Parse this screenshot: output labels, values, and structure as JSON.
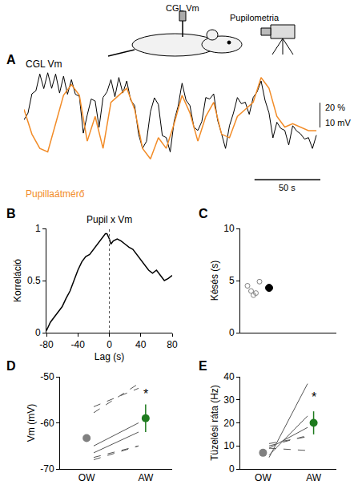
{
  "schematic": {
    "electrode_label": "CGL Vm",
    "camera_label": "Pupilometria"
  },
  "chart_data": [
    {
      "panel": "A",
      "type": "line",
      "tick_labels": false,
      "xlim": [
        0,
        225
      ],
      "ylim": [
        -6,
        40
      ],
      "y2lim": [
        -12,
        80
      ],
      "series": [
        {
          "name": "CGL Vm",
          "color": "#000000",
          "x": [
            0,
            3,
            6,
            9,
            12,
            15,
            18,
            21,
            24,
            27,
            30,
            33,
            36,
            39,
            42,
            45,
            48,
            51,
            54,
            57,
            60,
            63,
            66,
            69,
            72,
            75,
            78,
            81,
            84,
            87,
            90,
            93,
            96,
            99,
            102,
            105,
            108,
            111,
            114,
            117,
            120,
            123,
            126,
            129,
            132,
            135,
            138,
            141,
            144,
            147,
            150,
            153,
            156,
            159,
            162,
            165,
            168,
            171,
            174,
            177,
            180,
            183,
            186,
            189,
            192,
            195,
            198,
            201,
            204,
            207,
            210,
            213,
            216,
            219,
            222
          ],
          "values": [
            20.1,
            22.8,
            30.6,
            31.8,
            38.6,
            32.7,
            39.1,
            32.8,
            38.6,
            30.9,
            37.7,
            30.4,
            36.3,
            30.4,
            29.6,
            14.7,
            22.0,
            28.5,
            27.7,
            17.1,
            29.1,
            31.4,
            36.3,
            29.4,
            37.2,
            30.9,
            35.8,
            28.0,
            25.8,
            14.2,
            8.6,
            11.4,
            23.4,
            29.0,
            26.3,
            13.7,
            12.9,
            7.1,
            19.6,
            25.6,
            34.9,
            28.0,
            25.8,
            17.1,
            15.8,
            19.4,
            29.1,
            28.5,
            30.6,
            19.9,
            14.4,
            8.5,
            17.7,
            22.8,
            29.1,
            26.6,
            27.2,
            22.3,
            29.1,
            31.4,
            35.8,
            28.0,
            22.9,
            12.8,
            19.1,
            16.6,
            15.8,
            9.9,
            17.7,
            15.6,
            14.4,
            12.3,
            12.9,
            8.5,
            13.9
          ]
        },
        {
          "name": "Pupillaátmérő",
          "color": "#f28c28",
          "axis": "y2",
          "x": [
            0,
            6,
            12,
            18,
            24,
            30,
            36,
            42,
            48,
            54,
            60,
            66,
            72,
            78,
            84,
            90,
            96,
            102,
            108,
            114,
            120,
            126,
            132,
            138,
            144,
            150,
            156,
            162,
            168,
            174,
            180,
            186,
            192,
            198,
            204,
            210,
            216,
            222
          ],
          "values": [
            48.6,
            28.6,
            17.1,
            14.3,
            37.1,
            60.0,
            68.6,
            60.0,
            22.9,
            42.9,
            17.1,
            54.3,
            60.0,
            65.7,
            48.6,
            17.1,
            8.6,
            25.7,
            17.1,
            37.1,
            60.0,
            45.7,
            22.9,
            42.9,
            54.3,
            28.6,
            25.7,
            42.9,
            48.6,
            54.3,
            74.3,
            65.7,
            42.9,
            34.3,
            37.1,
            34.3,
            31.4,
            31.4
          ]
        }
      ],
      "scale_bars": [
        {
          "axis": "x",
          "value": 50,
          "label": "50 s"
        },
        {
          "axis": "y",
          "value": 10,
          "label": "10 mV"
        },
        {
          "axis": "y2",
          "value": 20,
          "label": "20 %"
        }
      ]
    },
    {
      "panel": "B",
      "type": "line",
      "title": "Pupil x Vm",
      "color": "#000000",
      "xlabel": "Lag (s)",
      "ylabel": "Korreláció",
      "xlim": [
        -80,
        80
      ],
      "xticks": [
        -80,
        -40,
        0,
        40,
        80
      ],
      "ylim": [
        0,
        1
      ],
      "yticks": [
        0,
        0.5,
        1
      ],
      "vline_x": 0,
      "x": [
        -80,
        -75,
        -70,
        -65,
        -60,
        -55,
        -50,
        -45,
        -40,
        -35,
        -30,
        -25,
        -20,
        -15,
        -10,
        -5,
        -3,
        0,
        2,
        5,
        10,
        15,
        20,
        25,
        30,
        35,
        40,
        45,
        50,
        55,
        60,
        65,
        70,
        75,
        80
      ],
      "values": [
        0.02,
        0.1,
        0.15,
        0.2,
        0.25,
        0.33,
        0.4,
        0.5,
        0.6,
        0.68,
        0.73,
        0.75,
        0.8,
        0.85,
        0.9,
        0.95,
        0.95,
        0.9,
        0.85,
        0.88,
        0.9,
        0.88,
        0.85,
        0.82,
        0.8,
        0.75,
        0.7,
        0.65,
        0.6,
        0.57,
        0.6,
        0.55,
        0.5,
        0.52,
        0.55
      ]
    },
    {
      "panel": "C",
      "type": "scatter",
      "ylabel": "Késés (s)",
      "tick_labels": "y",
      "xlim": [
        0,
        4
      ],
      "ylim": [
        0,
        10
      ],
      "yticks": [
        0,
        5,
        10
      ],
      "series": [
        {
          "color": "#808080",
          "marker": "open_circle",
          "x": [
            0.3,
            0.45,
            0.55,
            0.65,
            0.8
          ],
          "values": [
            4.5,
            4.0,
            3.6,
            3.8,
            4.9
          ]
        },
        {
          "color": "#000000",
          "marker": "circle",
          "x": [
            1.2
          ],
          "values": [
            4.3
          ]
        }
      ]
    },
    {
      "panel": "D",
      "type": "line",
      "categories": [
        "OW",
        "AW"
      ],
      "ylabel": "Vm (mV)",
      "ylim": [
        -70,
        -50
      ],
      "yticks": [
        -70,
        -60,
        -50
      ],
      "series": [
        {
          "color": "#555555",
          "line_style": "dashed",
          "values": [
            -57.8,
            -51.5
          ]
        },
        {
          "color": "#555555",
          "line_style": "dashed",
          "values": [
            -56.5,
            -52.5
          ]
        },
        {
          "color": "#555555",
          "line_style": "solid",
          "values": [
            -65.0,
            -60.0
          ]
        },
        {
          "color": "#555555",
          "line_style": "solid",
          "values": [
            -66.5,
            -62.0
          ]
        },
        {
          "color": "#555555",
          "line_style": "dashed",
          "values": [
            -68.0,
            -65.0
          ]
        },
        {
          "color": "#555555",
          "line_style": "dashed",
          "values": [
            -67.5,
            -65.0
          ]
        }
      ],
      "means": {
        "values": [
          -63.3,
          -59.0
        ],
        "colors": [
          "#808080",
          "#1e7b1e"
        ],
        "errors": [
          null,
          3
        ]
      },
      "annotations": [
        {
          "text": "*",
          "x": "AW",
          "y": -55.5
        }
      ]
    },
    {
      "panel": "E",
      "type": "line",
      "categories": [
        "OW",
        "AW"
      ],
      "ylabel": "Tüzelési ráta (Hz)",
      "ylim": [
        0,
        40
      ],
      "yticks": [
        0,
        10,
        20,
        30,
        40
      ],
      "series": [
        {
          "color": "#555555",
          "line_style": "solid",
          "values": [
            5,
            37
          ]
        },
        {
          "color": "#555555",
          "line_style": "solid",
          "values": [
            6,
            23
          ]
        },
        {
          "color": "#555555",
          "line_style": "solid",
          "values": [
            9,
            18
          ]
        },
        {
          "color": "#555555",
          "line_style": "dashed",
          "values": [
            11,
            14
          ]
        },
        {
          "color": "#555555",
          "line_style": "dashed",
          "values": [
            10,
            14.5
          ]
        },
        {
          "color": "#555555",
          "line_style": "dashed",
          "values": [
            9,
            8
          ]
        }
      ],
      "means": {
        "values": [
          7,
          20
        ],
        "colors": [
          "#808080",
          "#1e7b1e"
        ],
        "errors": [
          null,
          5
        ]
      },
      "annotations": [
        {
          "text": "*",
          "x": "AW",
          "y": 27.5
        }
      ]
    }
  ]
}
